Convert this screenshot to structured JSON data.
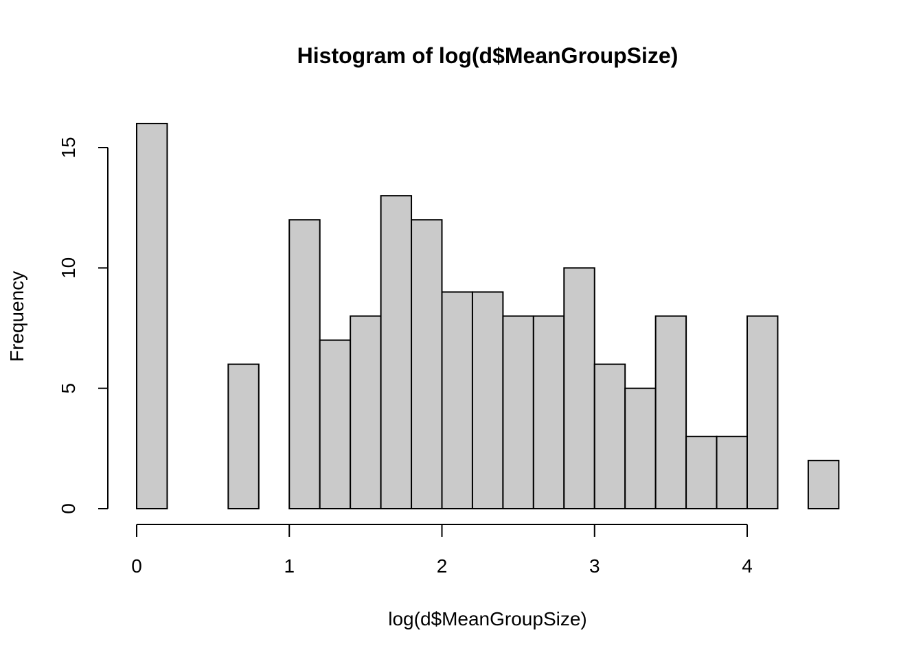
{
  "chart_data": {
    "type": "bar",
    "title": "Histogram of log(d$MeanGroupSize)",
    "xlabel": "log(d$MeanGroupSize)",
    "ylabel": "Frequency",
    "xlim": [
      0,
      4.6
    ],
    "ylim": [
      0,
      16
    ],
    "bin_width": 0.2,
    "bins": [
      {
        "x0": 0.0,
        "x1": 0.2,
        "count": 16
      },
      {
        "x0": 0.2,
        "x1": 0.4,
        "count": 0
      },
      {
        "x0": 0.4,
        "x1": 0.6,
        "count": 0
      },
      {
        "x0": 0.6,
        "x1": 0.8,
        "count": 6
      },
      {
        "x0": 0.8,
        "x1": 1.0,
        "count": 0
      },
      {
        "x0": 1.0,
        "x1": 1.2,
        "count": 12
      },
      {
        "x0": 1.2,
        "x1": 1.4,
        "count": 7
      },
      {
        "x0": 1.4,
        "x1": 1.6,
        "count": 8
      },
      {
        "x0": 1.6,
        "x1": 1.8,
        "count": 13
      },
      {
        "x0": 1.8,
        "x1": 2.0,
        "count": 12
      },
      {
        "x0": 2.0,
        "x1": 2.2,
        "count": 9
      },
      {
        "x0": 2.2,
        "x1": 2.4,
        "count": 9
      },
      {
        "x0": 2.4,
        "x1": 2.6,
        "count": 8
      },
      {
        "x0": 2.6,
        "x1": 2.8,
        "count": 8
      },
      {
        "x0": 2.8,
        "x1": 3.0,
        "count": 10
      },
      {
        "x0": 3.0,
        "x1": 3.2,
        "count": 6
      },
      {
        "x0": 3.2,
        "x1": 3.4,
        "count": 5
      },
      {
        "x0": 3.4,
        "x1": 3.6,
        "count": 8
      },
      {
        "x0": 3.6,
        "x1": 3.8,
        "count": 3
      },
      {
        "x0": 3.8,
        "x1": 4.0,
        "count": 3
      },
      {
        "x0": 4.0,
        "x1": 4.2,
        "count": 8
      },
      {
        "x0": 4.2,
        "x1": 4.4,
        "count": 0
      },
      {
        "x0": 4.4,
        "x1": 4.6,
        "count": 2
      }
    ],
    "x_ticks": [
      {
        "value": 0,
        "label": "0"
      },
      {
        "value": 1,
        "label": "1"
      },
      {
        "value": 2,
        "label": "2"
      },
      {
        "value": 3,
        "label": "3"
      },
      {
        "value": 4,
        "label": "4"
      }
    ],
    "y_ticks": [
      {
        "value": 0,
        "label": "0"
      },
      {
        "value": 5,
        "label": "5"
      },
      {
        "value": 10,
        "label": "10"
      },
      {
        "value": 15,
        "label": "15"
      }
    ],
    "bar_fill": "#cacaca",
    "bar_stroke": "#000000",
    "grid": false,
    "legend": "none"
  }
}
